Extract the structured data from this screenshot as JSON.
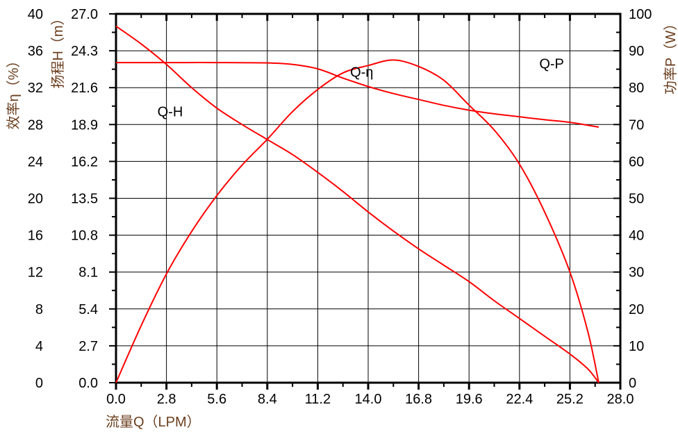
{
  "chart_data": {
    "type": "line",
    "xlabel": "流量Q（LPM）",
    "xlim": [
      0,
      28
    ],
    "xticks": [
      "0.0",
      "2.8",
      "5.6",
      "8.4",
      "11.2",
      "14.0",
      "16.8",
      "19.6",
      "22.4",
      "25.2",
      "28.0"
    ],
    "y_axes": [
      {
        "label": "效率η（%）",
        "lim": [
          0,
          40
        ],
        "ticks": [
          "0",
          "4",
          "8",
          "12",
          "16",
          "20",
          "24",
          "28",
          "32",
          "36",
          "40"
        ]
      },
      {
        "label": "扬程H（m）",
        "lim": [
          0,
          27
        ],
        "ticks": [
          "0.0",
          "2.7",
          "5.4",
          "8.1",
          "10.8",
          "13.5",
          "16.2",
          "18.9",
          "21.6",
          "24.3",
          "27.0"
        ]
      },
      {
        "label": "功率P（W）",
        "lim": [
          0,
          100
        ],
        "ticks": [
          "0",
          "10",
          "20",
          "30",
          "40",
          "50",
          "60",
          "70",
          "80",
          "90",
          "100"
        ],
        "side": "right"
      }
    ],
    "grid": true,
    "line_color": "#ff0000",
    "series": [
      {
        "name": "Q-H",
        "axis": 1,
        "x": [
          0,
          1.4,
          2.8,
          4.2,
          5.6,
          7.0,
          8.4,
          9.8,
          11.2,
          12.6,
          14.0,
          15.4,
          16.8,
          18.2,
          19.6,
          21.0,
          22.4,
          23.8,
          25.2,
          26.2,
          26.8
        ],
        "y": [
          26.1,
          24.8,
          23.3,
          21.6,
          20.1,
          18.9,
          17.8,
          16.7,
          15.4,
          14.0,
          12.5,
          11.1,
          9.8,
          8.6,
          7.4,
          6.0,
          4.7,
          3.4,
          2.1,
          1.0,
          0
        ]
      },
      {
        "name": "Q-η",
        "axis": 0,
        "x": [
          0,
          1.4,
          2.8,
          4.2,
          5.6,
          7.0,
          8.4,
          9.8,
          11.2,
          12.6,
          14.0,
          15.4,
          16.8,
          18.2,
          19.6,
          21.0,
          22.4,
          23.8,
          25.2,
          26.2,
          26.8
        ],
        "y": [
          0,
          6.2,
          11.8,
          16.4,
          20.3,
          23.6,
          26.4,
          29.4,
          31.8,
          33.6,
          34.4,
          35.0,
          34.3,
          32.8,
          30.1,
          27.4,
          23.7,
          18.5,
          12.0,
          5.5,
          0
        ]
      },
      {
        "name": "Q-P",
        "axis": 2,
        "x": [
          0,
          2.8,
          5.6,
          8.4,
          9.8,
          11.2,
          12.6,
          14.0,
          15.4,
          16.8,
          18.2,
          19.6,
          21.0,
          22.4,
          23.8,
          25.2,
          26.8
        ],
        "y": [
          86.8,
          86.8,
          86.8,
          86.7,
          86.3,
          85.1,
          82.6,
          80.3,
          78.4,
          76.8,
          75.2,
          73.9,
          72.9,
          72.1,
          71.3,
          70.6,
          69.3
        ]
      }
    ],
    "annotations": [
      {
        "text": "Q-H",
        "x": 2.3,
        "axis": 1,
        "y": 19.5
      },
      {
        "text": "Q-η",
        "x": 13.0,
        "axis": 1,
        "y": 22.4
      },
      {
        "text": "Q-P",
        "x": 23.5,
        "axis": 1,
        "y": 23.0
      }
    ]
  }
}
